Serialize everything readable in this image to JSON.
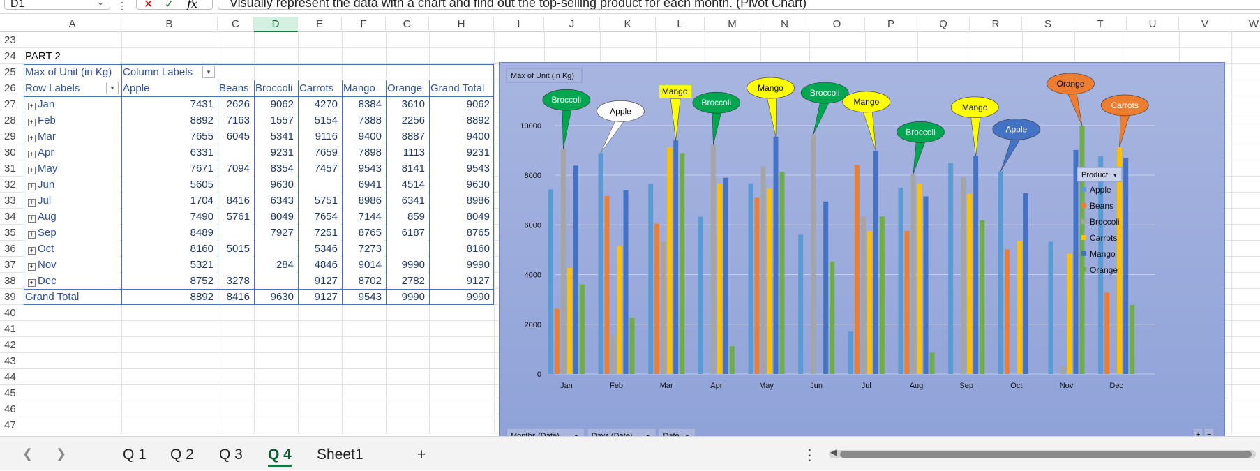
{
  "formula_bar": {
    "name_box": "D1",
    "formula": "Visually represent the data with a chart and find out the top-selling product for each month. (Pivot Chart)"
  },
  "columns": [
    "A",
    "B",
    "C",
    "D",
    "E",
    "F",
    "G",
    "H",
    "I",
    "J",
    "K",
    "L",
    "M",
    "N",
    "O",
    "P",
    "Q",
    "R",
    "S",
    "T",
    "U",
    "V",
    "W"
  ],
  "rows": [
    "23",
    "24",
    "25",
    "26",
    "27",
    "28",
    "29",
    "30",
    "31",
    "32",
    "33",
    "34",
    "35",
    "36",
    "37",
    "38",
    "39",
    "40",
    "41",
    "42",
    "43",
    "44",
    "45",
    "46",
    "47"
  ],
  "pivot": {
    "part_label": "PART 2",
    "value_field": "Max of Unit (in Kg)",
    "column_labels": "Column Labels",
    "row_labels": "Row Labels",
    "headers": [
      "Apple",
      "Beans",
      "Broccoli",
      "Carrots",
      "Mango",
      "Orange",
      "Grand Total"
    ],
    "data": [
      {
        "month": "Jan",
        "values": [
          "7431",
          "2626",
          "9062",
          "4270",
          "8384",
          "3610",
          "9062"
        ]
      },
      {
        "month": "Feb",
        "values": [
          "8892",
          "7163",
          "1557",
          "5154",
          "7388",
          "2256",
          "8892"
        ]
      },
      {
        "month": "Mar",
        "values": [
          "7655",
          "6045",
          "5341",
          "9116",
          "9400",
          "8887",
          "9400"
        ]
      },
      {
        "month": "Apr",
        "values": [
          "6331",
          "",
          "9231",
          "7659",
          "7898",
          "1113",
          "9231"
        ]
      },
      {
        "month": "May",
        "values": [
          "7671",
          "7094",
          "8354",
          "7457",
          "9543",
          "8141",
          "9543"
        ]
      },
      {
        "month": "Jun",
        "values": [
          "5605",
          "",
          "9630",
          "",
          "6941",
          "4514",
          "9630"
        ]
      },
      {
        "month": "Jul",
        "values": [
          "1704",
          "8416",
          "6343",
          "5751",
          "8986",
          "6341",
          "8986"
        ]
      },
      {
        "month": "Aug",
        "values": [
          "7490",
          "5761",
          "8049",
          "7654",
          "7144",
          "859",
          "8049"
        ]
      },
      {
        "month": "Sep",
        "values": [
          "8489",
          "",
          "7927",
          "7251",
          "8765",
          "6187",
          "8765"
        ]
      },
      {
        "month": "Oct",
        "values": [
          "8160",
          "5015",
          "",
          "5346",
          "7273",
          "",
          "8160"
        ]
      },
      {
        "month": "Nov",
        "values": [
          "5321",
          "",
          "284",
          "4846",
          "9014",
          "9990",
          "9990"
        ]
      },
      {
        "month": "Dec",
        "values": [
          "8752",
          "3278",
          "",
          "9127",
          "8702",
          "2782",
          "9127"
        ]
      }
    ],
    "grand_total_label": "Grand Total",
    "grand_total": [
      "8892",
      "8416",
      "9630",
      "9127",
      "9543",
      "9990",
      "9990"
    ]
  },
  "chart_data": {
    "type": "bar",
    "title": "Max of Unit (in Kg)",
    "categories": [
      "Jan",
      "Feb",
      "Mar",
      "Apr",
      "May",
      "Jun",
      "Jul",
      "Aug",
      "Sep",
      "Oct",
      "Nov",
      "Dec"
    ],
    "series": [
      {
        "name": "Apple",
        "color": "#5b9bd5",
        "values": [
          7431,
          8892,
          7655,
          6331,
          7671,
          5605,
          1704,
          7490,
          8489,
          8160,
          5321,
          8752
        ]
      },
      {
        "name": "Beans",
        "color": "#ed7d31",
        "values": [
          2626,
          7163,
          6045,
          0,
          7094,
          0,
          8416,
          5761,
          0,
          5015,
          0,
          3278
        ]
      },
      {
        "name": "Broccoli",
        "color": "#a5a5a5",
        "values": [
          9062,
          1557,
          5341,
          9231,
          8354,
          9630,
          6343,
          8049,
          7927,
          0,
          284,
          0
        ]
      },
      {
        "name": "Carrots",
        "color": "#ffc000",
        "values": [
          4270,
          5154,
          9116,
          7659,
          7457,
          0,
          5751,
          7654,
          7251,
          5346,
          4846,
          9127
        ]
      },
      {
        "name": "Mango",
        "color": "#4472c4",
        "values": [
          8384,
          7388,
          9400,
          7898,
          9543,
          6941,
          8986,
          7144,
          8765,
          7273,
          9014,
          8702
        ]
      },
      {
        "name": "Orange",
        "color": "#70ad47",
        "values": [
          3610,
          2256,
          8887,
          1113,
          8141,
          4514,
          6341,
          859,
          6187,
          0,
          9990,
          2782
        ]
      }
    ],
    "yticks": [
      0,
      2000,
      4000,
      6000,
      8000,
      10000
    ],
    "ylim": [
      0,
      10500
    ],
    "legend_title": "Product",
    "legend_position": "right",
    "callouts": [
      {
        "text": "Broccoli",
        "month": "Jan",
        "series": "Broccoli",
        "fill": "#00a650",
        "text_color": "#ffffff",
        "shape": "oval"
      },
      {
        "text": "Apple",
        "month": "Feb",
        "series": "Apple",
        "fill": "#ffffff",
        "text_color": "#000000",
        "shape": "oval"
      },
      {
        "text": "Mango",
        "month": "Mar",
        "series": "Mango",
        "fill": "#ffff00",
        "text_color": "#000000",
        "shape": "rect"
      },
      {
        "text": "Broccoli",
        "month": "Apr",
        "series": "Broccoli",
        "fill": "#00a650",
        "text_color": "#ffffff",
        "shape": "oval"
      },
      {
        "text": "Mango",
        "month": "May",
        "series": "Mango",
        "fill": "#ffff00",
        "text_color": "#000000",
        "shape": "oval"
      },
      {
        "text": "Broccoli",
        "month": "Jun",
        "series": "Broccoli",
        "fill": "#00a650",
        "text_color": "#ffffff",
        "shape": "oval"
      },
      {
        "text": "Mango",
        "month": "Jul",
        "series": "Mango",
        "fill": "#ffff00",
        "text_color": "#000000",
        "shape": "oval"
      },
      {
        "text": "Broccoli",
        "month": "Aug",
        "series": "Broccoli",
        "fill": "#00a650",
        "text_color": "#ffffff",
        "shape": "oval"
      },
      {
        "text": "Mango",
        "month": "Sep",
        "series": "Mango",
        "fill": "#ffff00",
        "text_color": "#000000",
        "shape": "oval"
      },
      {
        "text": "Apple",
        "month": "Oct",
        "series": "Apple",
        "fill": "#4472c4",
        "text_color": "#ffffff",
        "shape": "oval"
      },
      {
        "text": "Orange",
        "month": "Nov",
        "series": "Orange",
        "fill": "#ed7d31",
        "text_color": "#000000",
        "shape": "oval"
      },
      {
        "text": "Carrots",
        "month": "Dec",
        "series": "Carrots",
        "fill": "#ed7d31",
        "text_color": "#ffffff",
        "shape": "oval"
      }
    ],
    "field_buttons": [
      "Months (Date)",
      "Days (Date)",
      "Date"
    ],
    "zoom_buttons": [
      "+",
      "−"
    ]
  },
  "sheet_tabs": {
    "tabs": [
      "Q 1",
      "Q 2",
      "Q 3",
      "Q 4",
      "Sheet1"
    ],
    "active": "Q 4",
    "add_label": "+"
  }
}
